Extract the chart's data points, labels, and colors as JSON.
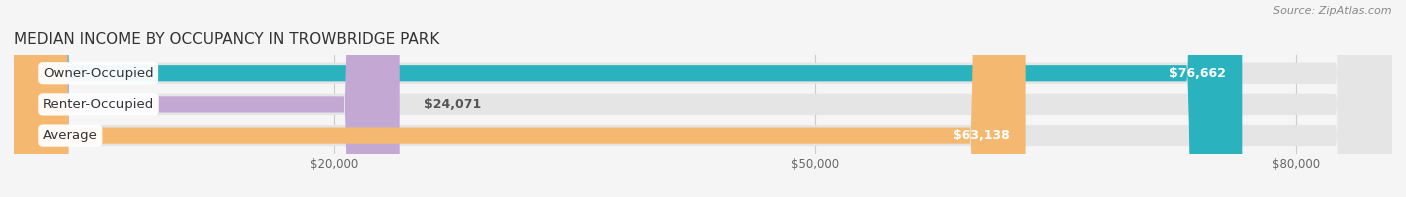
{
  "title": "MEDIAN INCOME BY OCCUPANCY IN TROWBRIDGE PARK",
  "source": "Source: ZipAtlas.com",
  "categories": [
    "Owner-Occupied",
    "Renter-Occupied",
    "Average"
  ],
  "values": [
    76662,
    24071,
    63138
  ],
  "bar_colors": [
    "#2ab3be",
    "#c4a8d4",
    "#f5b870"
  ],
  "value_labels": [
    "$76,662",
    "$24,071",
    "$63,138"
  ],
  "x_tick_values": [
    20000,
    50000,
    80000
  ],
  "x_tick_labels": [
    "$20,000",
    "$50,000",
    "$80,000"
  ],
  "x_min": 0,
  "x_max": 86000,
  "background_color": "#f5f5f5",
  "bar_background_color": "#e5e5e5",
  "title_fontsize": 11,
  "source_fontsize": 8,
  "label_fontsize": 9.5,
  "value_fontsize": 9
}
